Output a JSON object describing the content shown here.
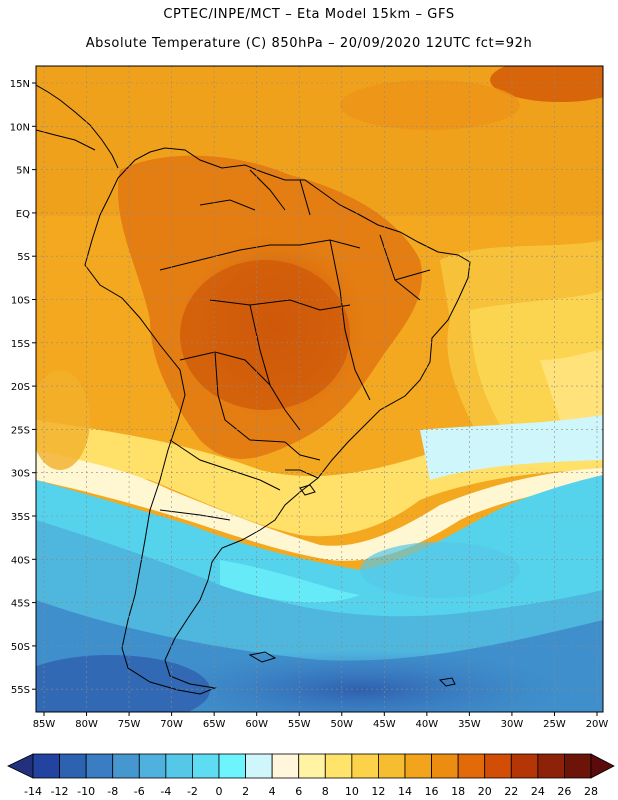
{
  "header": {
    "line1": "CPTEC/INPE/MCT –  Eta Model 15km – GFS",
    "line2": "Absolute Temperature (C) 850hPa – 20/09/2020 12UTC fct=92h"
  },
  "lat_labels": [
    "15N",
    "10N",
    "5N",
    "EQ",
    "5S",
    "10S",
    "15S",
    "20S",
    "25S",
    "30S",
    "35S",
    "40S",
    "45S",
    "50S",
    "55S"
  ],
  "lon_labels": [
    "85W",
    "80W",
    "75W",
    "70W",
    "65W",
    "60W",
    "55W",
    "50W",
    "45W",
    "40W",
    "35W",
    "30W",
    "25W",
    "20W"
  ],
  "colorbar": {
    "labels": [
      "-14",
      "-12",
      "-10",
      "-8",
      "-6",
      "-4",
      "-2",
      "0",
      "2",
      "4",
      "6",
      "8",
      "10",
      "12",
      "14",
      "16",
      "18",
      "20",
      "22",
      "24",
      "26",
      "28"
    ],
    "colors": [
      "#2244a0",
      "#2c62b0",
      "#3a7dc2",
      "#4697cf",
      "#4fb1dd",
      "#55c8e8",
      "#5edcf2",
      "#6ef4fc",
      "#cff6fb",
      "#fff6dc",
      "#fff3a4",
      "#ffe36a",
      "#fcd24a",
      "#f6bd30",
      "#f2a51c",
      "#ec8c10",
      "#e26a08",
      "#d24e06",
      "#b43506",
      "#8e2208",
      "#6c1408"
    ]
  },
  "colors": {
    "land_outline": "#000000",
    "grid": "#9a9a9a"
  }
}
